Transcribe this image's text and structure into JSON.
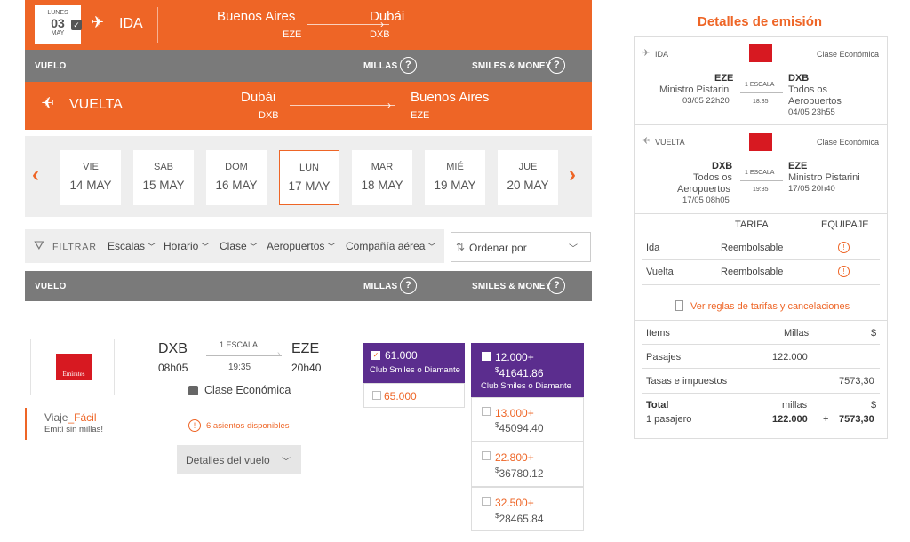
{
  "ida": {
    "date_dow": "LUNES",
    "date_day": "03",
    "date_month": "MAY",
    "label": "IDA",
    "from_city": "Buenos Aires",
    "from_code": "EZE",
    "to_city": "Dubái",
    "to_code": "DXB"
  },
  "header1": {
    "vuelo": "VUELO",
    "millas": "MILLAS",
    "smiles_money": "SMILES & MONEY",
    "q": "?"
  },
  "vuelta": {
    "label": "VUELTA",
    "from_city": "Dubái",
    "from_code": "DXB",
    "to_city": "Buenos Aires",
    "to_code": "EZE"
  },
  "days": [
    {
      "dow": "VIE",
      "date": "14 MAY"
    },
    {
      "dow": "SAB",
      "date": "15 MAY"
    },
    {
      "dow": "DOM",
      "date": "16 MAY"
    },
    {
      "dow": "LUN",
      "date": "17 MAY"
    },
    {
      "dow": "MAR",
      "date": "18 MAY"
    },
    {
      "dow": "MIÉ",
      "date": "19 MAY"
    },
    {
      "dow": "JUE",
      "date": "20 MAY"
    }
  ],
  "filters": {
    "filtrar": "FILTRAR",
    "escalas": "Escalas",
    "horario": "Horario",
    "clase": "Clase",
    "aeropuertos": "Aeropuertos",
    "compania": "Compañía aérea",
    "ordenar": "Ordenar por"
  },
  "flight": {
    "airline": "Emirates",
    "viaje": "Viaje",
    "facil": "_Fácil",
    "emiti": "Emití sin millas!",
    "from_code": "DXB",
    "dep": "08h05",
    "stops": "1 ESCALA",
    "duration": "19:35",
    "to_code": "EZE",
    "arr": "20h40",
    "cabin": "Clase Económica",
    "seats": "6 asientos disponibles",
    "detalles": "Detalles del vuelo"
  },
  "prices_millas": {
    "club_value": "61.000",
    "club_label": "Club Smiles o Diamante",
    "regular": "65.000"
  },
  "prices_sm": {
    "top_miles": "12.000+",
    "top_money": "41641.86",
    "top_label": "Club Smiles o Diamante",
    "rows": [
      {
        "miles": "13.000+",
        "money": "45094.40"
      },
      {
        "miles": "22.800+",
        "money": "36780.12"
      },
      {
        "miles": "32.500+",
        "money": "28465.84"
      }
    ],
    "currency": "$"
  },
  "detalles": {
    "title": "Detalles de emisión",
    "ida": {
      "label": "IDA",
      "clase": "Clase Económica",
      "from_code": "EZE",
      "from_name": "Ministro Pistarini",
      "from_dt": "03/05 22h20",
      "stops": "1 ESCALA",
      "duration": "18:35",
      "to_code": "DXB",
      "to_name1": "Todos os",
      "to_name2": "Aeropuertos",
      "to_dt": "04/05 23h55"
    },
    "vuelta": {
      "label": "VUELTA",
      "clase": "Clase Económica",
      "from_code": "DXB",
      "from_name1": "Todos os",
      "from_name2": "Aeropuertos",
      "from_dt": "17/05 08h05",
      "stops": "1 ESCALA",
      "duration": "19:35",
      "to_code": "EZE",
      "to_name": "Ministro Pistarini",
      "to_dt": "17/05 20h40"
    },
    "tarifa_hdr": "TARIFA",
    "equipaje_hdr": "EQUIPAJE",
    "rows": [
      {
        "label": "Ida",
        "tarifa": "Reembolsable"
      },
      {
        "label": "Vuelta",
        "tarifa": "Reembolsable"
      }
    ],
    "reglas": "Ver reglas de tarifas y cancelaciones",
    "items": "Items",
    "millas": "Millas",
    "money": "$",
    "pasajes": "Pasajes",
    "pasajes_millas": "122.000",
    "tasas": "Tasas e impuestos",
    "tasas_money": "7573,30",
    "total": "Total",
    "total_millas_lbl": "millas",
    "total_money_lbl": "$",
    "pasajero": "1 pasajero",
    "total_millas": "122.000",
    "plus": "+",
    "total_money": "7573,30"
  }
}
